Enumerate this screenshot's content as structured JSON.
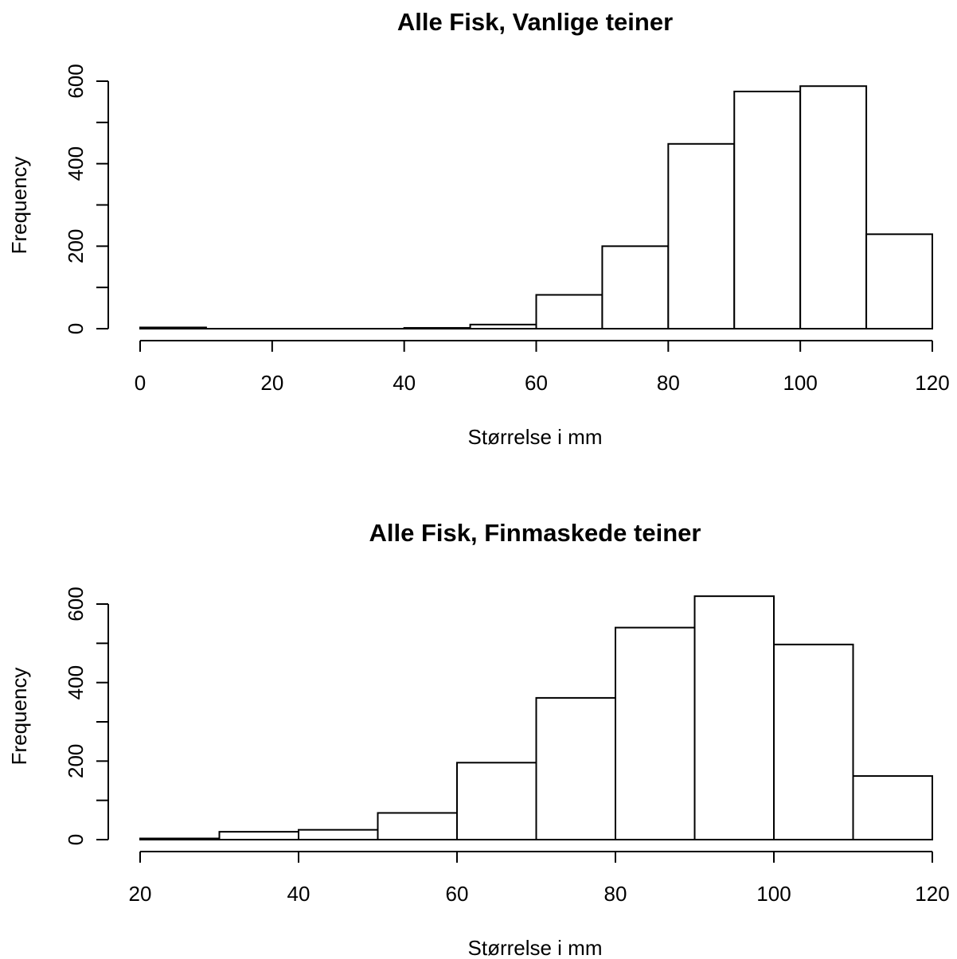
{
  "chart_data": [
    {
      "type": "bar",
      "title": "Alle Fisk, Vanlige teiner",
      "xlabel": "Størrelse i mm",
      "ylabel": "Frequency",
      "bin_edges": [
        0,
        10,
        20,
        30,
        40,
        50,
        60,
        70,
        80,
        90,
        100,
        110,
        120
      ],
      "values": [
        3,
        0,
        0,
        0,
        2,
        10,
        82,
        200,
        448,
        575,
        588,
        229
      ],
      "xticks": [
        "0",
        "20",
        "40",
        "60",
        "80",
        "100",
        "120"
      ],
      "yticks": [
        "0",
        "200",
        "400",
        "600"
      ],
      "xlim": [
        0,
        120
      ],
      "ylim": [
        0,
        600
      ],
      "grid": false
    },
    {
      "type": "bar",
      "title": "Alle Fisk, Finmaskede teiner",
      "xlabel": "Størrelse i mm",
      "ylabel": "Frequency",
      "bin_edges": [
        20,
        30,
        40,
        50,
        60,
        70,
        80,
        90,
        100,
        110,
        120
      ],
      "values": [
        3,
        20,
        25,
        68,
        196,
        361,
        540,
        620,
        497,
        162
      ],
      "xticks": [
        "20",
        "40",
        "60",
        "80",
        "100",
        "120"
      ],
      "yticks": [
        "0",
        "200",
        "400",
        "600"
      ],
      "xlim": [
        20,
        120
      ],
      "ylim": [
        0,
        600
      ],
      "grid": false
    }
  ]
}
